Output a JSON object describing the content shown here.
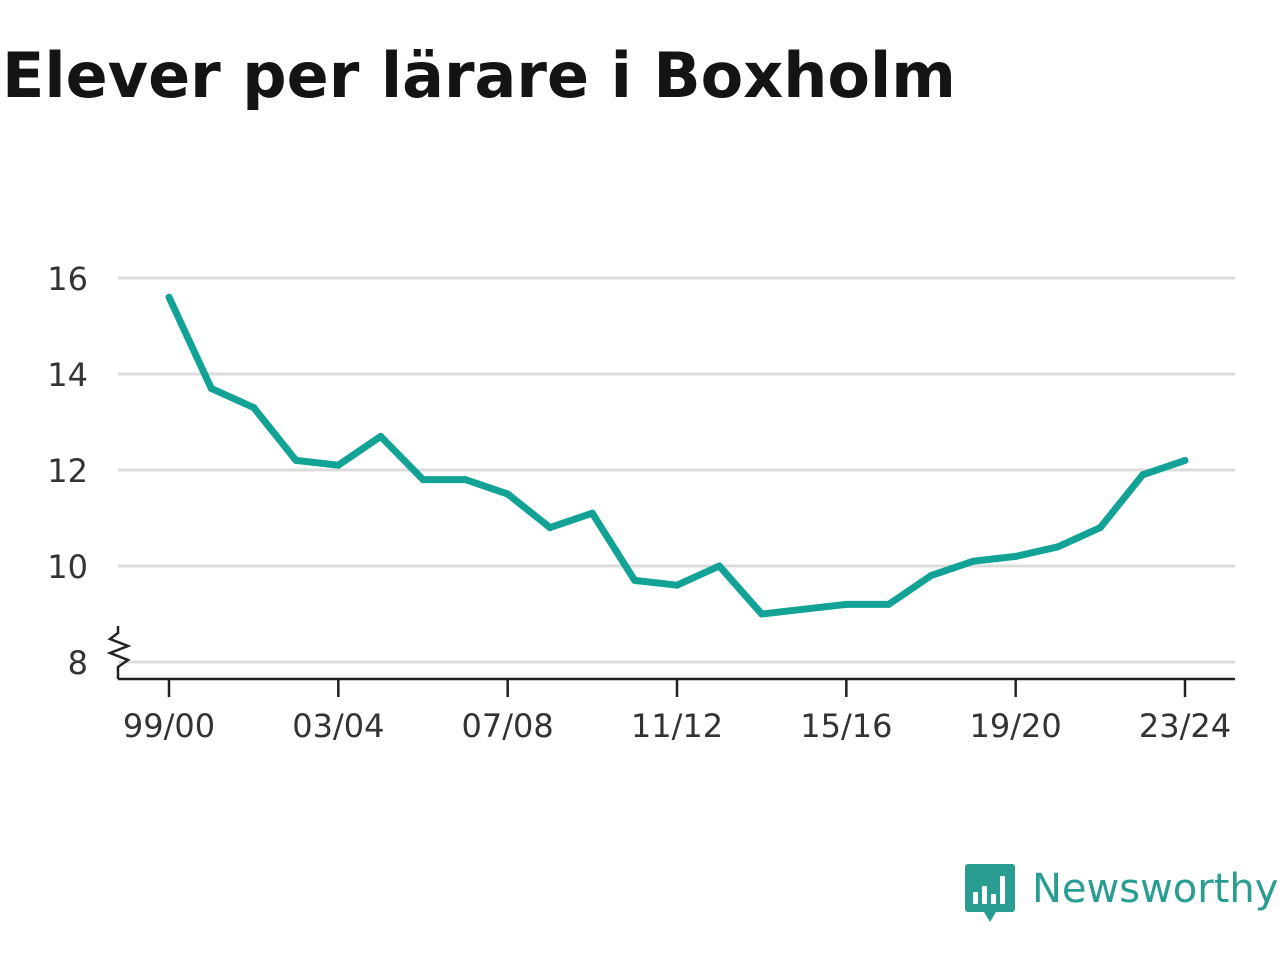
{
  "chart_data": {
    "type": "line",
    "title": "Elever per lärare i Boxholm",
    "xlabel": "",
    "ylabel": "",
    "x": [
      "99/00",
      "00/01",
      "01/02",
      "02/03",
      "03/04",
      "04/05",
      "05/06",
      "06/07",
      "07/08",
      "08/09",
      "09/10",
      "10/11",
      "11/12",
      "12/13",
      "13/14",
      "14/15",
      "15/16",
      "16/17",
      "17/18",
      "18/19",
      "19/20",
      "20/21",
      "21/22",
      "22/23",
      "23/24"
    ],
    "x_tick_labels": [
      "99/00",
      "03/04",
      "07/08",
      "11/12",
      "15/16",
      "19/20",
      "23/24"
    ],
    "series": [
      {
        "values": [
          15.6,
          13.7,
          13.3,
          12.2,
          12.1,
          12.7,
          11.8,
          11.8,
          11.5,
          10.8,
          11.1,
          9.7,
          9.6,
          10.0,
          9.0,
          9.1,
          9.2,
          9.2,
          9.8,
          10.1,
          10.2,
          10.4,
          10.8,
          11.9,
          12.2
        ],
        "color": "#13a396"
      }
    ],
    "y_ticks": [
      8,
      10,
      12,
      14,
      16
    ],
    "ylim": [
      8,
      16
    ],
    "y_axis_break": true,
    "grid": true,
    "legend": "none"
  },
  "brand": {
    "name": "Newsworthy",
    "icon": "newsworthy-logo-icon",
    "color": "#2a9d92"
  }
}
